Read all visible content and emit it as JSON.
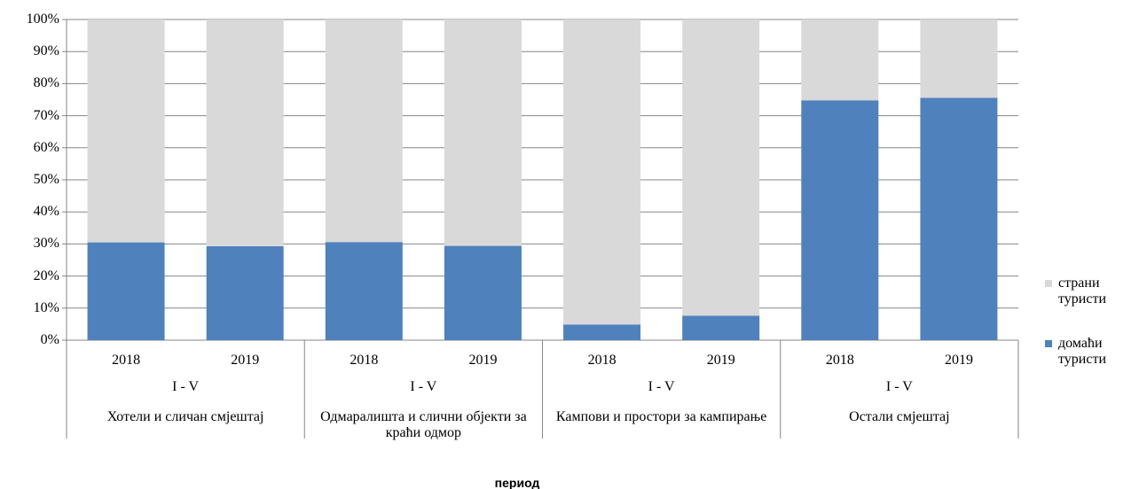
{
  "chart_data": {
    "type": "bar",
    "stacked": true,
    "categories": [
      "2018",
      "2019",
      "2018",
      "2019",
      "2018",
      "2019",
      "2018",
      "2019"
    ],
    "period_labels": [
      "I - V",
      "I - V",
      "I - V",
      "I - V"
    ],
    "group_labels": [
      "Хотели и сличан смјештај",
      "Одмаралишта и слични објекти за краћи одмор",
      "Кампови и простори за кампирање",
      "Остали смјештај"
    ],
    "series": [
      {
        "name": "домаћи туристи",
        "color": "#4f81bd",
        "values": [
          30.5,
          29.3,
          30.6,
          29.4,
          4.9,
          7.6,
          74.8,
          75.6
        ]
      },
      {
        "name": "страни туристи",
        "color": "#d9d9d9",
        "values": [
          69.5,
          70.7,
          69.4,
          70.6,
          95.1,
          92.4,
          25.2,
          24.4
        ]
      }
    ],
    "ylim": [
      0,
      100
    ],
    "yticks": [
      {
        "value": 0,
        "label": "0%"
      },
      {
        "value": 10,
        "label": "10%"
      },
      {
        "value": 20,
        "label": "20%"
      },
      {
        "value": 30,
        "label": "30%"
      },
      {
        "value": 40,
        "label": "40%"
      },
      {
        "value": 50,
        "label": "50%"
      },
      {
        "value": 60,
        "label": "60%"
      },
      {
        "value": 70,
        "label": "70%"
      },
      {
        "value": 80,
        "label": "80%"
      },
      {
        "value": 90,
        "label": "90%"
      },
      {
        "value": 100,
        "label": "100%"
      }
    ],
    "grid": true,
    "xlabel": "период",
    "legend": "right"
  }
}
